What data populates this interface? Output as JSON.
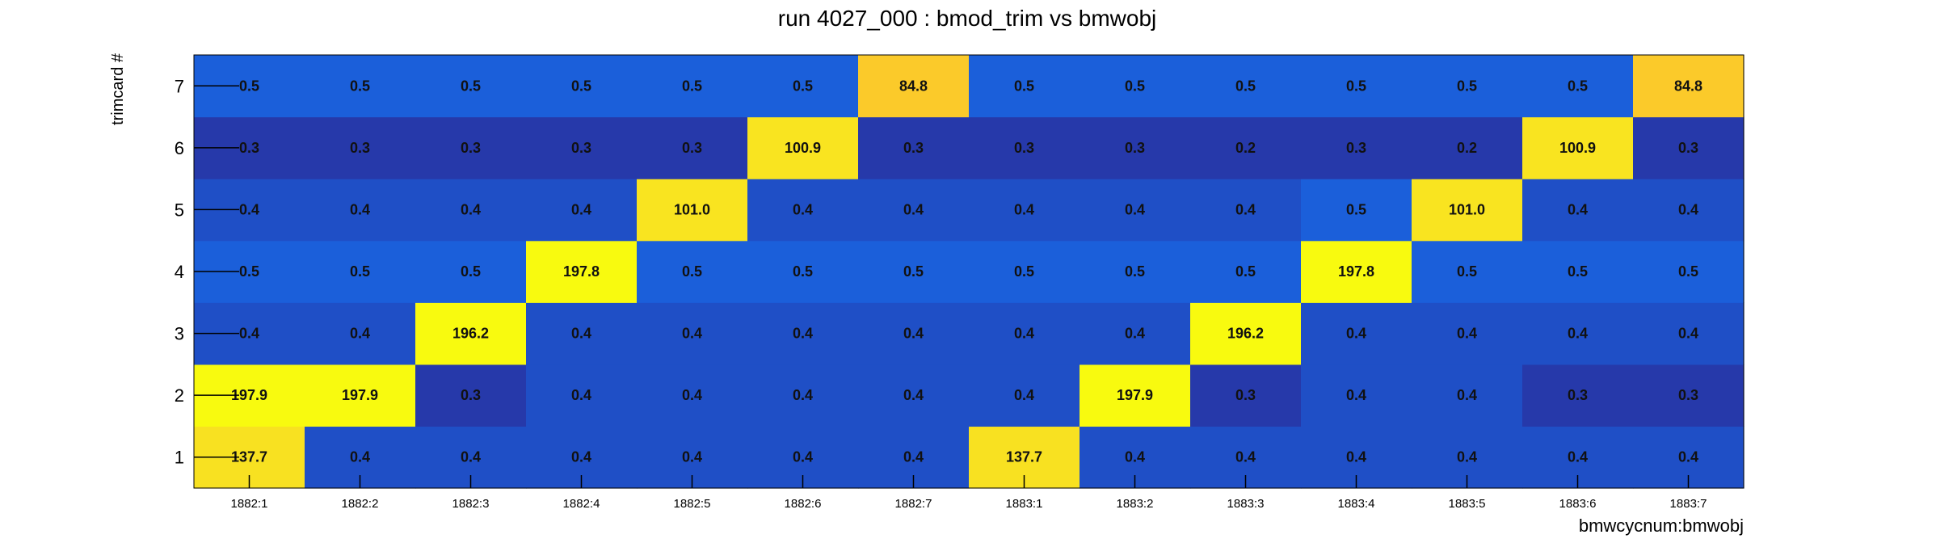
{
  "chart_data": {
    "type": "heatmap",
    "title": "run 4027_000 : bmod_trim vs bmwobj",
    "xlabel": "bmwcycnum:bmwobj",
    "ylabel": "trimcard #",
    "x_categories": [
      "1882:1",
      "1882:2",
      "1882:3",
      "1882:4",
      "1882:5",
      "1882:6",
      "1882:7",
      "1883:1",
      "1883:2",
      "1883:3",
      "1883:4",
      "1883:5",
      "1883:6",
      "1883:7"
    ],
    "y_categories": [
      "1",
      "2",
      "3",
      "4",
      "5",
      "6",
      "7"
    ],
    "values": [
      [
        137.7,
        197.9,
        0.4,
        0.5,
        0.4,
        0.3,
        0.5
      ],
      [
        0.4,
        197.9,
        0.4,
        0.5,
        0.4,
        0.3,
        0.5
      ],
      [
        0.4,
        0.3,
        196.2,
        0.5,
        0.4,
        0.3,
        0.5
      ],
      [
        0.4,
        0.4,
        0.4,
        197.8,
        0.4,
        0.3,
        0.5
      ],
      [
        0.4,
        0.4,
        0.4,
        0.5,
        101.0,
        0.3,
        0.5
      ],
      [
        0.4,
        0.4,
        0.4,
        0.5,
        0.4,
        100.9,
        0.5
      ],
      [
        0.4,
        0.4,
        0.4,
        0.5,
        0.4,
        0.3,
        84.8
      ],
      [
        137.7,
        0.4,
        0.4,
        0.5,
        0.4,
        0.3,
        0.5
      ],
      [
        0.4,
        197.9,
        0.4,
        0.5,
        0.4,
        0.3,
        0.5
      ],
      [
        0.4,
        0.3,
        196.2,
        0.5,
        0.4,
        0.2,
        0.5
      ],
      [
        0.4,
        0.4,
        0.4,
        197.8,
        0.5,
        0.3,
        0.5
      ],
      [
        0.4,
        0.4,
        0.4,
        0.5,
        101.0,
        0.2,
        0.5
      ],
      [
        0.4,
        0.3,
        0.4,
        0.5,
        0.4,
        100.9,
        0.5
      ],
      [
        0.4,
        0.3,
        0.4,
        0.5,
        0.4,
        0.3,
        84.8
      ]
    ],
    "values_layout": "values[x_index][y_index], y_index 0 = trimcard 1",
    "colors": {
      "low_07": "#2639aa",
      "low_06": "#1f4fc6",
      "low_05": "#1b5fda",
      "high_200": "#f8fa0f",
      "high_140": "#f8e121",
      "high_100": "#f9e420",
      "high_85": "#fbca2a",
      "label": "#111111",
      "axis": "#000000"
    },
    "legend": "none",
    "grid": false
  }
}
